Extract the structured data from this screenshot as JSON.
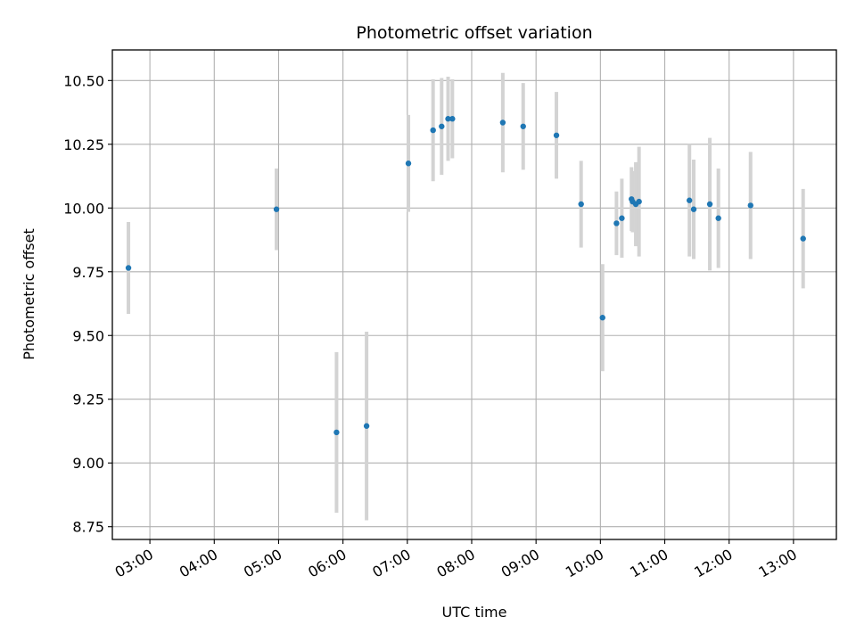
{
  "chart_data": {
    "type": "scatter",
    "title": "Photometric offset variation",
    "xlabel": "UTC time",
    "ylabel": "Photometric offset",
    "x_axis": "time (hours UTC)",
    "xlim": [
      "02:25",
      "13:40"
    ],
    "ylim": [
      8.7,
      10.62
    ],
    "grid": true,
    "xticks": [
      "03:00",
      "04:00",
      "05:00",
      "06:00",
      "07:00",
      "08:00",
      "09:00",
      "10:00",
      "11:00",
      "12:00",
      "13:00"
    ],
    "yticks": [
      "8.75",
      "9.00",
      "9.25",
      "9.50",
      "9.75",
      "10.00",
      "10.25",
      "10.50"
    ],
    "colors": {
      "marker": "#1f77b4",
      "errorbar": "#d3d3d3",
      "grid": "#b0b0b0"
    },
    "series": [
      {
        "points": [
          {
            "x": "02:40",
            "y": 9.765,
            "err": 0.18
          },
          {
            "x": "04:58",
            "y": 9.995,
            "err": 0.16
          },
          {
            "x": "05:54",
            "y": 9.12,
            "err": 0.315
          },
          {
            "x": "06:22",
            "y": 9.145,
            "err": 0.37
          },
          {
            "x": "07:01",
            "y": 10.175,
            "err": 0.19
          },
          {
            "x": "07:24",
            "y": 10.305,
            "err": 0.2
          },
          {
            "x": "07:32",
            "y": 10.32,
            "err": 0.19
          },
          {
            "x": "07:38",
            "y": 10.35,
            "err": 0.165
          },
          {
            "x": "07:42",
            "y": 10.35,
            "err": 0.155
          },
          {
            "x": "08:29",
            "y": 10.335,
            "err": 0.195
          },
          {
            "x": "08:48",
            "y": 10.32,
            "err": 0.17
          },
          {
            "x": "09:19",
            "y": 10.285,
            "err": 0.17
          },
          {
            "x": "09:42",
            "y": 10.015,
            "err": 0.17
          },
          {
            "x": "10:02",
            "y": 9.57,
            "err": 0.21
          },
          {
            "x": "10:15",
            "y": 9.94,
            "err": 0.125
          },
          {
            "x": "10:20",
            "y": 9.96,
            "err": 0.155
          },
          {
            "x": "10:29",
            "y": 10.035,
            "err": 0.125
          },
          {
            "x": "10:30",
            "y": 10.025,
            "err": 0.12
          },
          {
            "x": "10:33",
            "y": 10.015,
            "err": 0.165
          },
          {
            "x": "10:36",
            "y": 10.025,
            "err": 0.215
          },
          {
            "x": "11:23",
            "y": 10.03,
            "err": 0.22
          },
          {
            "x": "11:27",
            "y": 9.995,
            "err": 0.195
          },
          {
            "x": "11:42",
            "y": 10.015,
            "err": 0.26
          },
          {
            "x": "11:50",
            "y": 9.96,
            "err": 0.195
          },
          {
            "x": "12:20",
            "y": 10.01,
            "err": 0.21
          },
          {
            "x": "13:09",
            "y": 9.88,
            "err": 0.195
          }
        ]
      }
    ]
  }
}
